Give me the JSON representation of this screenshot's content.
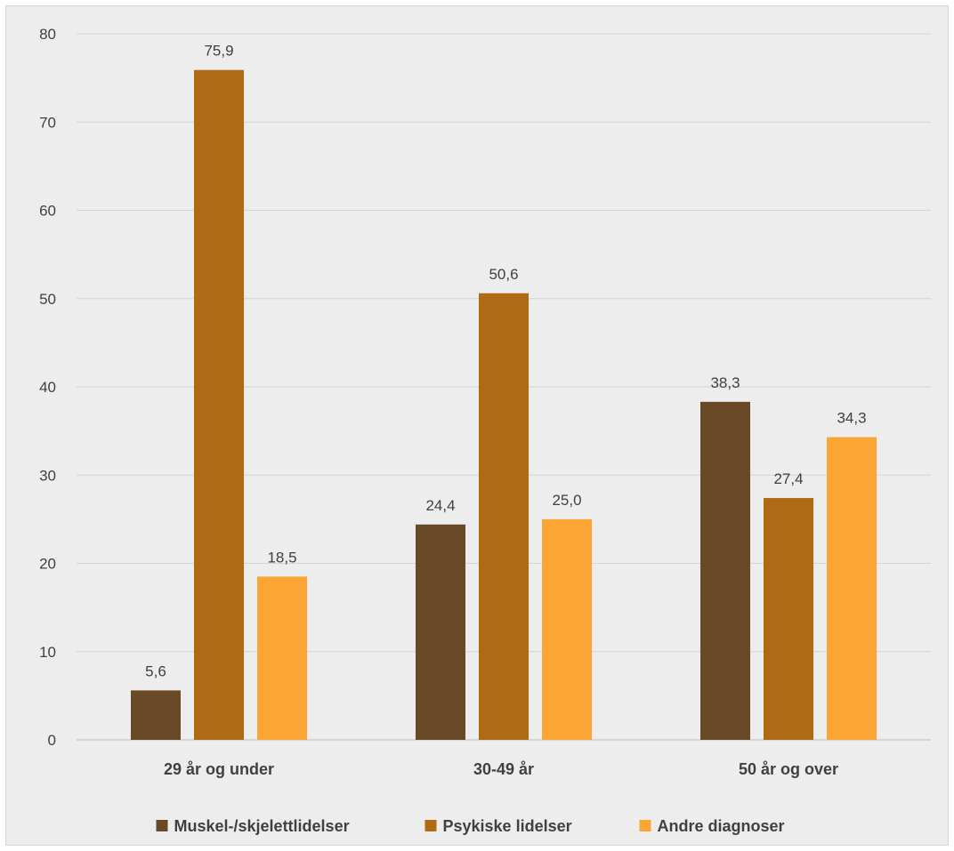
{
  "chart_data": {
    "type": "bar",
    "categories": [
      "29 år og under",
      "30-49 år",
      "50 år og over"
    ],
    "series": [
      {
        "name": "Muskel-/skjelettlidelser",
        "values": [
          5.6,
          24.4,
          38.3
        ],
        "labels": [
          "5,6",
          "24,4",
          "38,3"
        ],
        "color": "#6a4a26"
      },
      {
        "name": "Psykiske lidelser",
        "values": [
          75.9,
          50.6,
          27.4
        ],
        "labels": [
          "75,9",
          "50,6",
          "27,4"
        ],
        "color": "#b06a14"
      },
      {
        "name": "Andre diagnoser",
        "values": [
          18.5,
          25.0,
          34.3
        ],
        "labels": [
          "18,5",
          "25,0",
          "34,3"
        ],
        "color": "#fba634"
      }
    ],
    "ylim": [
      0,
      80
    ],
    "yticks": [
      0,
      10,
      20,
      30,
      40,
      50,
      60,
      70,
      80
    ],
    "grid": true,
    "legend_position": "bottom"
  }
}
